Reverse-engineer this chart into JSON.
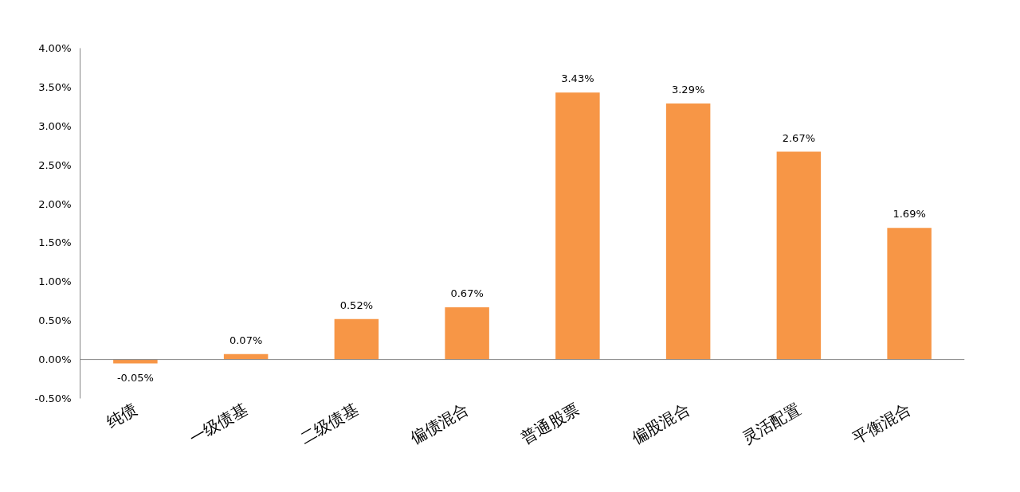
{
  "chart_data": {
    "type": "bar",
    "categories": [
      "纯债",
      "一级债基",
      "二级债基",
      "偏债混合",
      "普通股票",
      "偏股混合",
      "灵活配置",
      "平衡混合"
    ],
    "values": [
      -0.05,
      0.07,
      0.52,
      0.67,
      3.43,
      3.29,
      2.67,
      1.69
    ],
    "value_labels": [
      "-0.05%",
      "0.07%",
      "0.52%",
      "0.67%",
      "3.43%",
      "3.29%",
      "2.67%",
      "1.69%"
    ],
    "color": "#f79646",
    "ylim": [
      -0.5,
      4.0
    ],
    "yticks": [
      {
        "value": -0.5,
        "label": "-0.50%"
      },
      {
        "value": 0,
        "label": "0.00%"
      },
      {
        "value": 0.5,
        "label": "0.50%"
      },
      {
        "value": 1.0,
        "label": "1.00%"
      },
      {
        "value": 1.5,
        "label": "1.50%"
      },
      {
        "value": 2.0,
        "label": "2.00%"
      },
      {
        "value": 2.5,
        "label": "2.50%"
      },
      {
        "value": 3.0,
        "label": "3.00%"
      },
      {
        "value": 3.5,
        "label": "3.50%"
      },
      {
        "value": 4.0,
        "label": "4.00%"
      }
    ],
    "grid": false
  }
}
